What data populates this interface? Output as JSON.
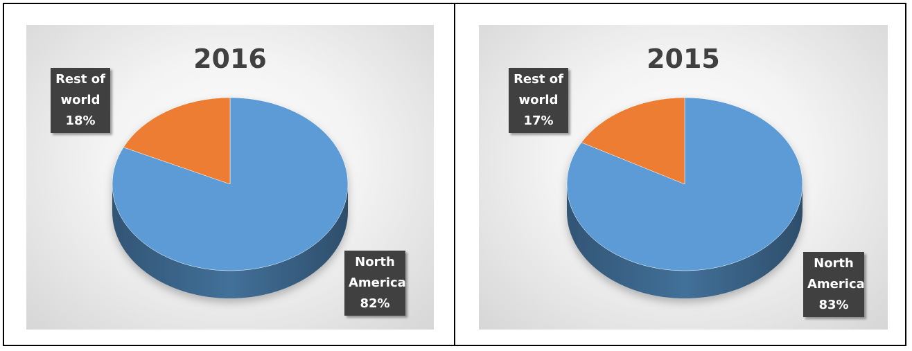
{
  "chart_data": [
    {
      "type": "pie",
      "title": "2016",
      "slices": [
        {
          "label_lines": [
            "North",
            "America"
          ],
          "value": 82,
          "value_label": "82%",
          "color": "#5b9bd5"
        },
        {
          "label_lines": [
            "Rest of",
            "world"
          ],
          "value": 18,
          "value_label": "18%",
          "color": "#ed7d31"
        }
      ],
      "style": "3d",
      "legend": "none"
    },
    {
      "type": "pie",
      "title": "2015",
      "slices": [
        {
          "label_lines": [
            "North",
            "America"
          ],
          "value": 83,
          "value_label": "83%",
          "color": "#5b9bd5"
        },
        {
          "label_lines": [
            "Rest of",
            "world"
          ],
          "value": 17,
          "value_label": "17%",
          "color": "#ed7d31"
        }
      ],
      "style": "3d",
      "legend": "none"
    }
  ]
}
